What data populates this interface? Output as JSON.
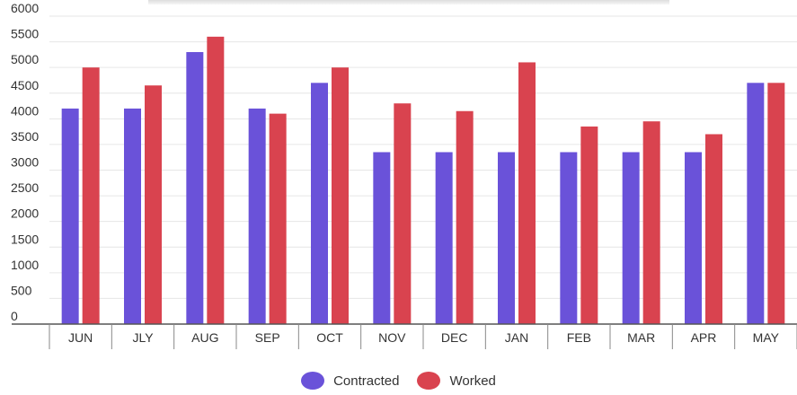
{
  "chart_data": {
    "type": "bar",
    "categories": [
      "JUN",
      "JLY",
      "AUG",
      "SEP",
      "OCT",
      "NOV",
      "DEC",
      "JAN",
      "FEB",
      "MAR",
      "APR",
      "MAY"
    ],
    "series": [
      {
        "name": "Contracted",
        "color": "#6a52d9",
        "values": [
          4200,
          4200,
          5300,
          4200,
          4700,
          3350,
          3350,
          3350,
          3350,
          3350,
          3350,
          4700
        ]
      },
      {
        "name": "Worked",
        "color": "#d9434f",
        "values": [
          5000,
          4650,
          5600,
          4100,
          5000,
          4300,
          4150,
          5100,
          3850,
          3950,
          3700,
          4700
        ]
      }
    ],
    "title": "",
    "xlabel": "",
    "ylabel": "",
    "ylim": [
      0,
      6000
    ],
    "yticks": [
      0,
      500,
      1000,
      1500,
      2000,
      2500,
      3000,
      3500,
      4000,
      4500,
      5000,
      5500,
      6000
    ],
    "grid": true,
    "legend_position": "bottom-center"
  }
}
